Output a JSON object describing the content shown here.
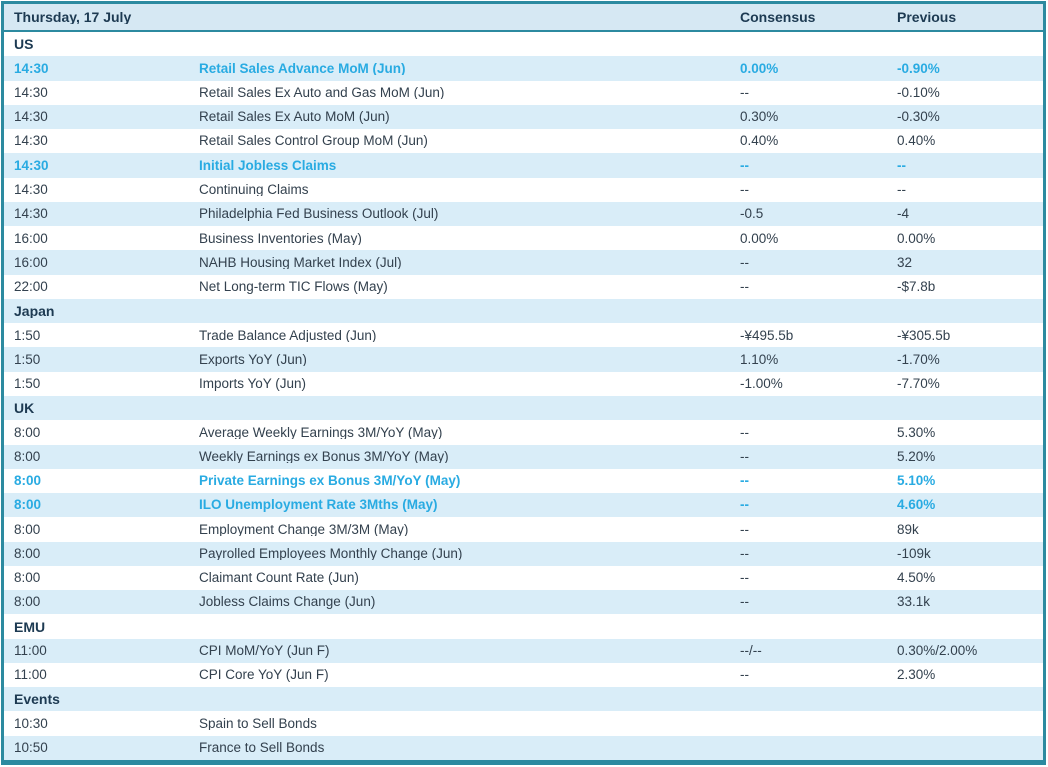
{
  "title_bar": {
    "date": "Thursday, 17 July",
    "consensus_label": "Consensus",
    "previous_label": "Previous"
  },
  "colors": {
    "teal": "#2c8aa0",
    "header_bg": "#d6e8f3",
    "stripe": "#d9edf8",
    "cyan": "#29abe2",
    "navy": "#1d3a52",
    "text": "#33414e"
  },
  "sections": [
    {
      "name": "US",
      "rows": [
        {
          "time": "14:30",
          "event": "Retail Sales Advance MoM (Jun)",
          "consensus": "0.00%",
          "previous": "-0.90%",
          "highlight": true
        },
        {
          "time": "14:30",
          "event": "Retail Sales Ex Auto and Gas MoM (Jun)",
          "consensus": "--",
          "previous": "-0.10%",
          "highlight": false
        },
        {
          "time": "14:30",
          "event": "Retail Sales Ex Auto MoM (Jun)",
          "consensus": "0.30%",
          "previous": "-0.30%",
          "highlight": false
        },
        {
          "time": "14:30",
          "event": "Retail Sales Control Group MoM (Jun)",
          "consensus": "0.40%",
          "previous": "0.40%",
          "highlight": false
        },
        {
          "time": "14:30",
          "event": "Initial Jobless Claims",
          "consensus": "--",
          "previous": "--",
          "highlight": true
        },
        {
          "time": "14:30",
          "event": "Continuing Claims",
          "consensus": "--",
          "previous": "--",
          "highlight": false
        },
        {
          "time": "14:30",
          "event": "Philadelphia Fed Business Outlook (Jul)",
          "consensus": "-0.5",
          "previous": "-4",
          "highlight": false
        },
        {
          "time": "16:00",
          "event": "Business Inventories (May)",
          "consensus": "0.00%",
          "previous": "0.00%",
          "highlight": false
        },
        {
          "time": "16:00",
          "event": "NAHB Housing Market Index (Jul)",
          "consensus": "--",
          "previous": "32",
          "highlight": false
        },
        {
          "time": "22:00",
          "event": "Net Long-term TIC Flows (May)",
          "consensus": "--",
          "previous": "-$7.8b",
          "highlight": false
        }
      ]
    },
    {
      "name": "Japan",
      "rows": [
        {
          "time": "1:50",
          "event": "Trade Balance Adjusted (Jun)",
          "consensus": "-¥495.5b",
          "previous": "-¥305.5b",
          "highlight": false
        },
        {
          "time": "1:50",
          "event": "Exports YoY (Jun)",
          "consensus": "1.10%",
          "previous": "-1.70%",
          "highlight": false
        },
        {
          "time": "1:50",
          "event": "Imports YoY (Jun)",
          "consensus": "-1.00%",
          "previous": "-7.70%",
          "highlight": false
        }
      ]
    },
    {
      "name": "UK",
      "rows": [
        {
          "time": "8:00",
          "event": "Average Weekly Earnings 3M/YoY (May)",
          "consensus": "--",
          "previous": "5.30%",
          "highlight": false
        },
        {
          "time": "8:00",
          "event": "Weekly Earnings ex Bonus 3M/YoY (May)",
          "consensus": "--",
          "previous": "5.20%",
          "highlight": false
        },
        {
          "time": "8:00",
          "event": "Private Earnings ex Bonus 3M/YoY (May)",
          "consensus": "--",
          "previous": "5.10%",
          "highlight": true
        },
        {
          "time": "8:00",
          "event": "ILO Unemployment Rate 3Mths (May)",
          "consensus": "--",
          "previous": "4.60%",
          "highlight": true
        },
        {
          "time": "8:00",
          "event": "Employment Change 3M/3M (May)",
          "consensus": "--",
          "previous": "89k",
          "highlight": false
        },
        {
          "time": "8:00",
          "event": "Payrolled Employees Monthly Change (Jun)",
          "consensus": "--",
          "previous": "-109k",
          "highlight": false
        },
        {
          "time": "8:00",
          "event": "Claimant Count Rate (Jun)",
          "consensus": "--",
          "previous": "4.50%",
          "highlight": false
        },
        {
          "time": "8:00",
          "event": "Jobless Claims Change (Jun)",
          "consensus": "--",
          "previous": "33.1k",
          "highlight": false
        }
      ]
    },
    {
      "name": "EMU",
      "rows": [
        {
          "time": "11:00",
          "event": "CPI MoM/YoY (Jun F)",
          "consensus": "--/--",
          "previous": "0.30%/2.00%",
          "highlight": false
        },
        {
          "time": "11:00",
          "event": "CPI Core YoY (Jun F)",
          "consensus": "--",
          "previous": "2.30%",
          "highlight": false
        }
      ]
    },
    {
      "name": "Events",
      "rows": [
        {
          "time": "10:30",
          "event": "Spain to Sell Bonds",
          "consensus": "",
          "previous": "",
          "highlight": false
        },
        {
          "time": "10:50",
          "event": "France to Sell Bonds",
          "consensus": "",
          "previous": "",
          "highlight": false
        }
      ]
    }
  ]
}
